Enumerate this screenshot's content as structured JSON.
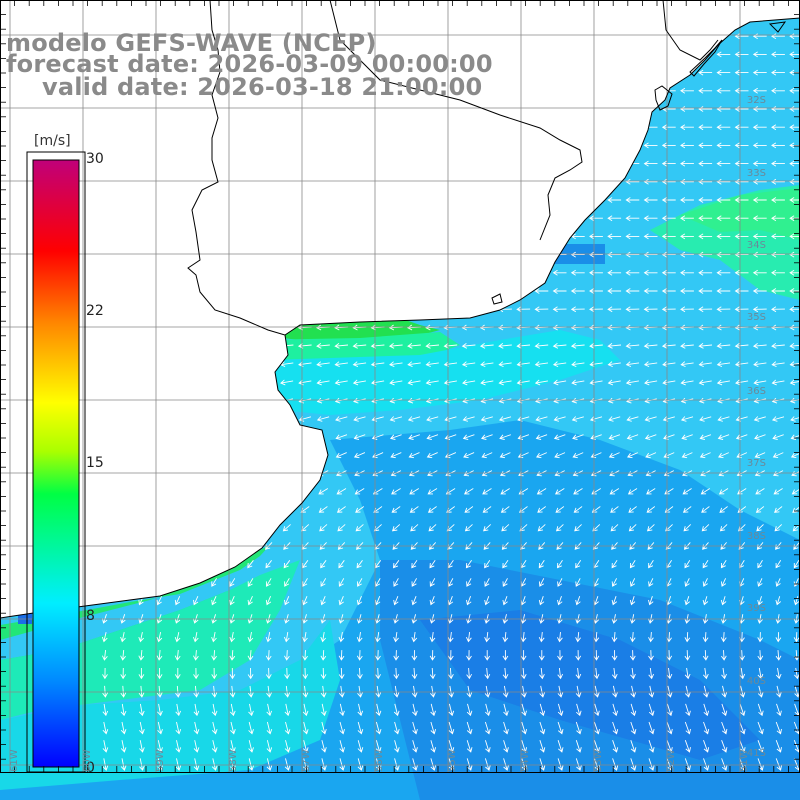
{
  "header": {
    "line1": "modelo GEFS-WAVE (NCEP)",
    "line2": "forecast date: 2026-03-09 00:00:00",
    "line3": "valid date: 2026-03-18 21:00:00"
  },
  "colorbar": {
    "unit": "[m/s]",
    "ticks": [
      "30",
      "22",
      "15",
      "8",
      "0"
    ],
    "range": [
      0,
      30
    ],
    "colors": [
      "#0000ff",
      "#0088ff",
      "#00eeff",
      "#00ff44",
      "#ffff00",
      "#ff8800",
      "#ff0000",
      "#c0007a"
    ]
  },
  "map": {
    "lat_labels": [
      "32S",
      "33S",
      "34S",
      "35S",
      "36S",
      "37S",
      "38S",
      "39S",
      "40S",
      "41S"
    ],
    "lon_labels": [
      "61W",
      "60W",
      "59W",
      "58W",
      "57W",
      "56W",
      "55W",
      "54W",
      "53W",
      "52W",
      "51W"
    ],
    "land_color": "#ffffff",
    "grid_color": "#888888",
    "coast_color": "#000000",
    "arrow_color": "#ffffff"
  }
}
